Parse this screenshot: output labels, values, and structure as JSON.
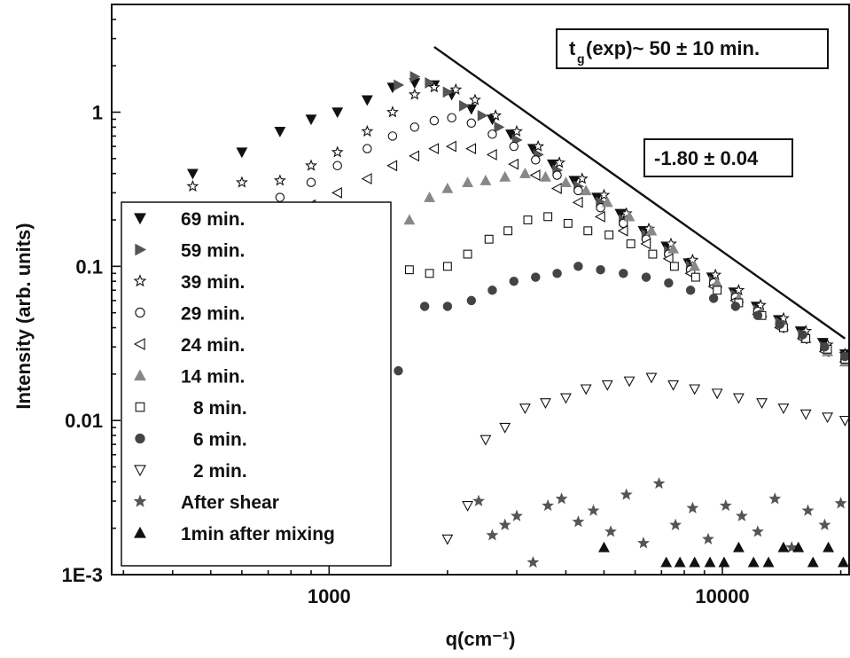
{
  "chart_data": {
    "type": "scatter",
    "xscale": "log",
    "yscale": "log",
    "xlim": [
      280,
      21000
    ],
    "ylim": [
      0.001,
      5
    ],
    "xlabel": "q(cm⁻¹)",
    "ylabel": "Intensity (arb. units)",
    "x_ticks": [
      {
        "value": 1000,
        "label": "1000"
      },
      {
        "value": 10000,
        "label": "10000"
      }
    ],
    "y_ticks": [
      {
        "value": 0.001,
        "label": "1E-3"
      },
      {
        "value": 0.01,
        "label": "0.01"
      },
      {
        "value": 0.1,
        "label": "0.1"
      },
      {
        "value": 1,
        "label": "1"
      }
    ],
    "legend_position": "left",
    "annotations": {
      "tg_main": "t",
      "tg_sub": "g",
      "tg_rest": "(exp)~ 50 ± 10 min.",
      "slope": "-1.80 ± 0.04"
    },
    "fit_line": {
      "x": [
        1850,
        20500
      ],
      "y": [
        2.65,
        0.034
      ]
    },
    "series": [
      {
        "name": "69 min.",
        "marker": "triangle-down-filled",
        "color": "#111111",
        "x": [
          450,
          600,
          750,
          900,
          1050,
          1250,
          1450,
          1650,
          1850,
          2050,
          2300,
          2600,
          2900,
          3300,
          3700,
          4200,
          4800,
          5500,
          6300,
          7200,
          8200,
          9400,
          10700,
          12200,
          13900,
          15800,
          18000,
          20500
        ],
        "y": [
          0.4,
          0.55,
          0.75,
          0.9,
          1.0,
          1.2,
          1.45,
          1.55,
          1.5,
          1.3,
          1.05,
          0.9,
          0.72,
          0.58,
          0.46,
          0.36,
          0.28,
          0.22,
          0.17,
          0.135,
          0.105,
          0.085,
          0.068,
          0.055,
          0.045,
          0.038,
          0.032,
          0.027
        ]
      },
      {
        "name": "59 min.",
        "marker": "triangle-right-filled",
        "color": "#555555",
        "x": [
          1500,
          1650,
          1800,
          2000,
          2200,
          2450,
          2700,
          3000,
          3400,
          3800,
          4300,
          4900,
          5600,
          6400,
          7300,
          8300,
          9500,
          10800,
          12300,
          14000,
          16000,
          18200,
          20500
        ],
        "y": [
          1.5,
          1.7,
          1.55,
          1.35,
          1.1,
          0.95,
          0.8,
          0.66,
          0.53,
          0.42,
          0.33,
          0.26,
          0.2,
          0.16,
          0.125,
          0.1,
          0.08,
          0.065,
          0.052,
          0.043,
          0.036,
          0.03,
          0.026
        ]
      },
      {
        "name": "39 min.",
        "marker": "star-open",
        "color": "#111111",
        "x": [
          450,
          600,
          750,
          900,
          1050,
          1250,
          1450,
          1650,
          1850,
          2100,
          2350,
          2650,
          3000,
          3400,
          3850,
          4400,
          5000,
          5700,
          6500,
          7400,
          8400,
          9600,
          11000,
          12500,
          14300,
          16300,
          18500,
          20500
        ],
        "y": [
          0.33,
          0.35,
          0.36,
          0.45,
          0.55,
          0.75,
          1.0,
          1.3,
          1.45,
          1.4,
          1.2,
          0.95,
          0.75,
          0.6,
          0.47,
          0.37,
          0.29,
          0.22,
          0.175,
          0.14,
          0.11,
          0.088,
          0.07,
          0.056,
          0.046,
          0.038,
          0.031,
          0.027
        ]
      },
      {
        "name": "29 min.",
        "marker": "circle-open",
        "color": "#111111",
        "x": [
          750,
          900,
          1050,
          1250,
          1450,
          1650,
          1850,
          2050,
          2300,
          2600,
          2950,
          3350,
          3800,
          4300,
          4900,
          5600,
          6400,
          7300,
          8300,
          9500,
          10800,
          12300,
          14000,
          16000,
          18200,
          20500
        ],
        "y": [
          0.28,
          0.35,
          0.45,
          0.58,
          0.7,
          0.8,
          0.88,
          0.92,
          0.85,
          0.72,
          0.6,
          0.49,
          0.39,
          0.31,
          0.24,
          0.19,
          0.15,
          0.12,
          0.095,
          0.078,
          0.063,
          0.051,
          0.042,
          0.035,
          0.029,
          0.025
        ]
      },
      {
        "name": "24 min.",
        "marker": "triangle-left-open",
        "color": "#111111",
        "x": [
          900,
          1050,
          1250,
          1450,
          1650,
          1850,
          2050,
          2300,
          2600,
          2950,
          3350,
          3800,
          4300,
          4900,
          5600,
          6400,
          7300,
          8300,
          9500,
          10800,
          12300,
          14000,
          16000,
          18200,
          20500
        ],
        "y": [
          0.25,
          0.3,
          0.37,
          0.45,
          0.52,
          0.58,
          0.6,
          0.58,
          0.53,
          0.46,
          0.39,
          0.32,
          0.26,
          0.21,
          0.17,
          0.14,
          0.112,
          0.09,
          0.074,
          0.06,
          0.049,
          0.04,
          0.034,
          0.028,
          0.024
        ]
      },
      {
        "name": "14 min.",
        "marker": "triangle-up-filled",
        "color": "#888888",
        "x": [
          1600,
          1800,
          2000,
          2250,
          2500,
          2800,
          3150,
          3550,
          4000,
          4500,
          5100,
          5800,
          6600,
          7500,
          8500,
          9700,
          11000,
          12600,
          14300,
          16300,
          18500,
          20500
        ],
        "y": [
          0.2,
          0.28,
          0.32,
          0.35,
          0.36,
          0.38,
          0.4,
          0.38,
          0.35,
          0.31,
          0.26,
          0.21,
          0.17,
          0.13,
          0.1,
          0.078,
          0.062,
          0.05,
          0.041,
          0.034,
          0.028,
          0.024
        ]
      },
      {
        "name": "8 min.",
        "marker": "square-open",
        "color": "#111111",
        "x": [
          1600,
          1800,
          2000,
          2250,
          2550,
          2850,
          3200,
          3600,
          4050,
          4550,
          5150,
          5850,
          6650,
          7550,
          8550,
          9700,
          11000,
          12600,
          14300,
          16300,
          18500,
          20500
        ],
        "y": [
          0.095,
          0.09,
          0.1,
          0.12,
          0.15,
          0.17,
          0.2,
          0.21,
          0.19,
          0.17,
          0.16,
          0.14,
          0.12,
          0.1,
          0.085,
          0.07,
          0.058,
          0.048,
          0.04,
          0.034,
          0.029,
          0.025
        ]
      },
      {
        "name": "6 min.",
        "marker": "circle-filled",
        "color": "#444444",
        "x": [
          1500,
          1750,
          2000,
          2300,
          2600,
          2950,
          3350,
          3800,
          4300,
          4900,
          5600,
          6400,
          7300,
          8300,
          9500,
          10800,
          12300,
          14000,
          16000,
          18200,
          20500
        ],
        "y": [
          0.021,
          0.055,
          0.055,
          0.06,
          0.07,
          0.08,
          0.085,
          0.09,
          0.1,
          0.095,
          0.09,
          0.085,
          0.078,
          0.07,
          0.062,
          0.055,
          0.048,
          0.042,
          0.036,
          0.03,
          0.026
        ]
      },
      {
        "name": "2 min.",
        "marker": "triangle-down-open",
        "color": "#111111",
        "x": [
          2000,
          2250,
          2500,
          2800,
          3150,
          3550,
          4000,
          4500,
          5100,
          5800,
          6600,
          7500,
          8500,
          9700,
          11000,
          12600,
          14300,
          16300,
          18500,
          20500
        ],
        "y": [
          0.0017,
          0.0028,
          0.0075,
          0.009,
          0.012,
          0.013,
          0.014,
          0.016,
          0.017,
          0.018,
          0.019,
          0.017,
          0.016,
          0.015,
          0.014,
          0.013,
          0.012,
          0.011,
          0.0105,
          0.01
        ]
      },
      {
        "name": "After shear",
        "marker": "star-filled",
        "color": "#555555",
        "x": [
          2400,
          2600,
          2800,
          3000,
          3300,
          3600,
          3900,
          4300,
          4700,
          5200,
          5700,
          6300,
          6900,
          7600,
          8400,
          9200,
          10200,
          11200,
          12300,
          13600,
          15000,
          16500,
          18200,
          20000
        ],
        "y": [
          0.003,
          0.0018,
          0.0021,
          0.0024,
          0.0012,
          0.0028,
          0.0031,
          0.0022,
          0.0026,
          0.0019,
          0.0033,
          0.0016,
          0.0039,
          0.0021,
          0.0027,
          0.0017,
          0.0028,
          0.0024,
          0.0019,
          0.0031,
          0.0015,
          0.0026,
          0.0021,
          0.0029
        ]
      },
      {
        "name": "1min after mixing",
        "marker": "triangle-up-filled",
        "color": "#111111",
        "x": [
          5000,
          7200,
          7800,
          8500,
          9300,
          10100,
          11000,
          12000,
          13100,
          14300,
          15600,
          17000,
          18600,
          20300
        ],
        "y": [
          0.0015,
          0.0012,
          0.0012,
          0.0012,
          0.0012,
          0.0012,
          0.0015,
          0.0012,
          0.0012,
          0.0015,
          0.0015,
          0.0012,
          0.0015,
          0.0012
        ]
      }
    ]
  }
}
